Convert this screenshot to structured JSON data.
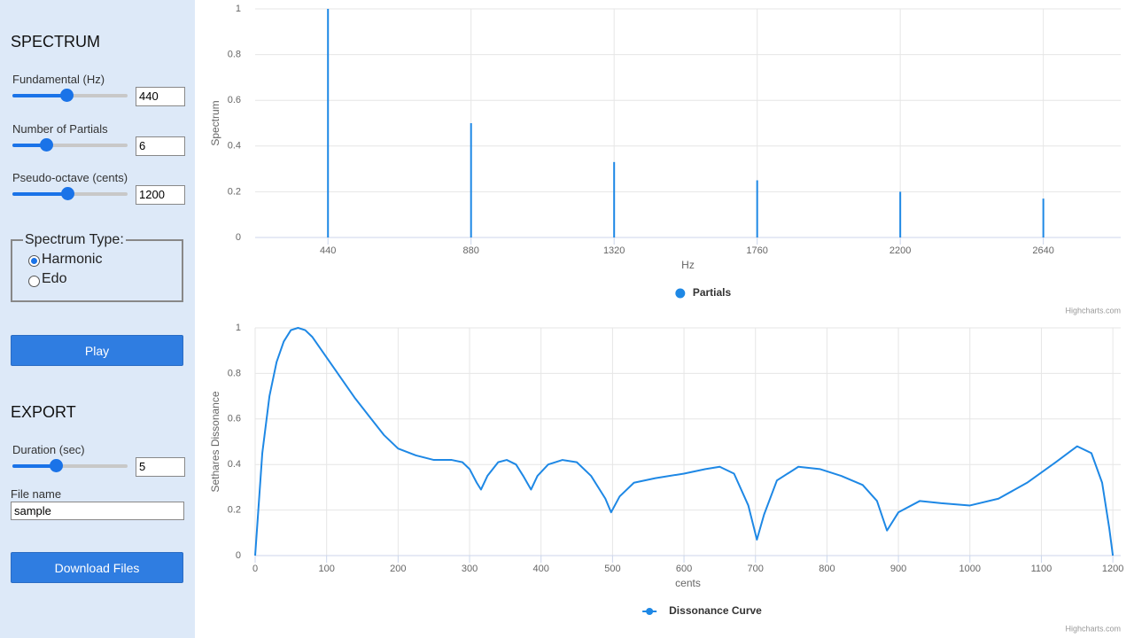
{
  "sidebar": {
    "spectrum_heading": "SPECTRUM",
    "fundamental": {
      "label": "Fundamental (Hz)",
      "value": "440"
    },
    "partials": {
      "label": "Number of Partials",
      "value": "6"
    },
    "pseudo_octave": {
      "label": "Pseudo-octave (cents)",
      "value": "1200"
    },
    "spectrum_type": {
      "legend": "Spectrum Type:",
      "options": [
        "Harmonic",
        "Edo"
      ]
    },
    "play_button": "Play",
    "export_heading": "EXPORT",
    "duration": {
      "label": "Duration (sec)",
      "value": "5"
    },
    "file_name": {
      "label": "File name",
      "value": "sample"
    },
    "download_button": "Download Files"
  },
  "chart_data": [
    {
      "type": "bar",
      "y_label": "Spectrum",
      "x_label": "Hz",
      "credits": "Highcharts.com",
      "x": [
        440,
        880,
        1320,
        1760,
        2200,
        2640
      ],
      "series": [
        {
          "name": "Partials",
          "color": "#1e88e5",
          "values": [
            1,
            0.5,
            0.33,
            0.25,
            0.2,
            0.17
          ]
        }
      ],
      "xlim": [
        216,
        2878
      ],
      "xticks": [
        440,
        880,
        1320,
        1760,
        2200,
        2640
      ],
      "ylim": [
        0,
        1
      ],
      "yticks": [
        0,
        0.2,
        0.4,
        0.6,
        0.8,
        1
      ],
      "grid": true
    },
    {
      "type": "line",
      "y_label": "Sethares Dissonance",
      "x_label": "cents",
      "credits": "Highcharts.com",
      "x": [
        0,
        10,
        20,
        30,
        40,
        50,
        60,
        70,
        80,
        100,
        120,
        140,
        160,
        180,
        200,
        225,
        250,
        275,
        290,
        300,
        310,
        316,
        325,
        340,
        352,
        365,
        375,
        386,
        395,
        410,
        430,
        450,
        470,
        490,
        498,
        510,
        530,
        560,
        600,
        630,
        650,
        670,
        690,
        702,
        712,
        730,
        760,
        790,
        820,
        850,
        870,
        884,
        900,
        930,
        960,
        1000,
        1040,
        1080,
        1120,
        1150,
        1170,
        1185,
        1195,
        1200
      ],
      "series": [
        {
          "name": "Dissonance Curve",
          "color": "#1e88e5",
          "values": [
            0,
            0.45,
            0.7,
            0.85,
            0.94,
            0.99,
            1,
            0.99,
            0.96,
            0.87,
            0.78,
            0.69,
            0.61,
            0.53,
            0.47,
            0.44,
            0.42,
            0.42,
            0.41,
            0.38,
            0.32,
            0.29,
            0.35,
            0.41,
            0.42,
            0.4,
            0.35,
            0.29,
            0.35,
            0.4,
            0.42,
            0.41,
            0.35,
            0.25,
            0.19,
            0.26,
            0.32,
            0.34,
            0.36,
            0.38,
            0.39,
            0.36,
            0.22,
            0.07,
            0.18,
            0.33,
            0.39,
            0.38,
            0.35,
            0.31,
            0.24,
            0.11,
            0.19,
            0.24,
            0.23,
            0.22,
            0.25,
            0.32,
            0.41,
            0.48,
            0.45,
            0.32,
            0.12,
            0
          ]
        }
      ],
      "xlim": [
        0,
        1211
      ],
      "xticks": [
        0,
        100,
        200,
        300,
        400,
        500,
        600,
        700,
        800,
        900,
        1000,
        1100,
        1200
      ],
      "ylim": [
        0,
        1
      ],
      "yticks": [
        0,
        0.2,
        0.4,
        0.6,
        0.8,
        1
      ],
      "grid": true
    }
  ]
}
